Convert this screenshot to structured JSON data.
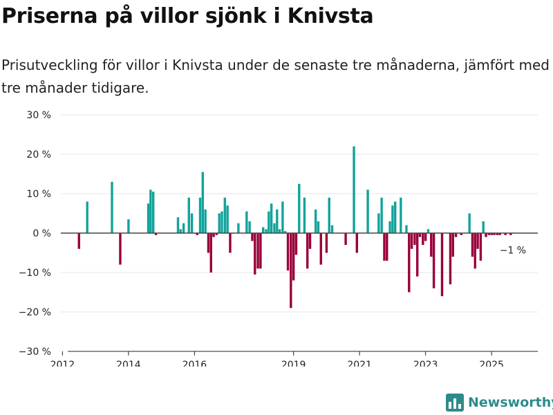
{
  "title": "Priserna på villor sjönk i Knivsta",
  "subtitle": "Prisutveckling för villor i Knivsta under de senaste tre månaderna, jämfört med tre månader tidigare.",
  "brand": "Newsworthy",
  "colors": {
    "positive": "#12a39a",
    "negative": "#99003a",
    "grid": "#e4e4e4",
    "zero": "#444444",
    "brand": "#2e8b8b"
  },
  "chart_data": {
    "type": "bar",
    "title": "",
    "xlabel": "",
    "ylabel": "",
    "ylim": [
      -30,
      30
    ],
    "xlim": [
      2011.95,
      2026.4
    ],
    "y_ticks": [
      30,
      20,
      10,
      0,
      -10,
      -20,
      -30
    ],
    "y_tick_labels": [
      "30 %",
      "20 %",
      "10 %",
      "0 %",
      "−10 %",
      "−20 %",
      "−30 %"
    ],
    "x_ticks": [
      2012,
      2014,
      2016,
      2019,
      2021,
      2023,
      2025
    ],
    "x_tick_labels": [
      "2012",
      "2014",
      "2016",
      "2019",
      "2021",
      "2023",
      "2025"
    ],
    "grid": true,
    "annotation": {
      "text": "−1 %",
      "x": 2025.2,
      "y": -1
    },
    "series": [
      {
        "x": [
          2012.5,
          2012.75,
          2013.5,
          2013.75,
          2014.0,
          2014.6,
          2014.67,
          2014.75,
          2014.83,
          2015.5,
          2015.58,
          2015.67,
          2015.83,
          2015.92,
          2016.08,
          2016.17,
          2016.25,
          2016.33,
          2016.42,
          2016.5,
          2016.58,
          2016.67,
          2016.75,
          2016.83,
          2016.92,
          2017.0,
          2017.08,
          2017.17,
          2017.33,
          2017.58,
          2017.67,
          2017.75,
          2017.83,
          2017.92,
          2018.0,
          2018.08,
          2018.17,
          2018.25,
          2018.33,
          2018.42,
          2018.5,
          2018.58,
          2018.67,
          2018.75,
          2018.83,
          2018.92,
          2019.0,
          2019.08,
          2019.17,
          2019.33,
          2019.42,
          2019.5,
          2019.67,
          2019.75,
          2019.83,
          2020.0,
          2020.08,
          2020.17,
          2020.58,
          2020.83,
          2020.92,
          2021.25,
          2021.58,
          2021.67,
          2021.75,
          2021.83,
          2021.92,
          2022.0,
          2022.08,
          2022.25,
          2022.42,
          2022.5,
          2022.58,
          2022.67,
          2022.75,
          2022.83,
          2022.92,
          2023.0,
          2023.08,
          2023.17,
          2023.25,
          2023.5,
          2023.75,
          2023.83,
          2023.92,
          2024.08,
          2024.33,
          2024.42,
          2024.5,
          2024.58,
          2024.67,
          2024.75,
          2024.83,
          2024.92,
          2025.0,
          2025.08,
          2025.17,
          2025.25,
          2025.42,
          2025.58
        ],
        "values": [
          -4,
          8,
          13,
          -8,
          3.5,
          7.5,
          11,
          10.5,
          -0.5,
          4,
          1,
          2.5,
          9,
          5,
          -0.5,
          9,
          15.5,
          6,
          -5,
          -10,
          -1,
          -0.5,
          5,
          5.5,
          9,
          7,
          -5,
          0,
          2.5,
          5.5,
          3,
          -2,
          -10.5,
          -9,
          -9,
          1.5,
          1,
          5.5,
          7.5,
          2.5,
          6,
          1,
          8,
          0.5,
          -9.5,
          -19,
          -12,
          -5.5,
          12.5,
          9,
          -9,
          -4,
          6,
          3,
          -8,
          -5,
          9,
          2,
          -3,
          22,
          -5,
          11,
          5,
          9,
          -7,
          -7,
          3,
          7,
          8,
          9,
          2,
          -15,
          -4,
          -3,
          -11,
          -1,
          -3,
          -2,
          1,
          -6,
          -14,
          -16,
          -13,
          -6,
          -1,
          -0.5,
          5,
          -6,
          -9,
          -4,
          -7,
          3,
          -1,
          -0.5,
          -0.5,
          -0.5,
          -0.5,
          -0.5,
          -0.5,
          -0.5
        ]
      }
    ]
  }
}
